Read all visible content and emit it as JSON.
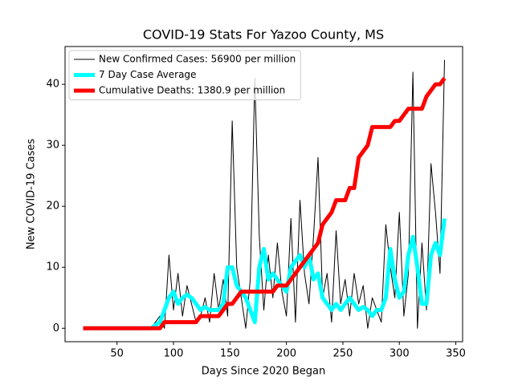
{
  "chart_data": {
    "type": "line",
    "title": "COVID-19 Stats For Yazoo County, MS",
    "x_label": "Days Since 2020 Began",
    "y_label": "New COVID-19 Cases",
    "x": [
      20,
      24,
      28,
      32,
      36,
      40,
      44,
      48,
      52,
      56,
      60,
      64,
      68,
      72,
      76,
      80,
      84,
      88,
      92,
      96,
      100,
      104,
      108,
      112,
      116,
      120,
      124,
      128,
      132,
      136,
      140,
      144,
      148,
      152,
      156,
      160,
      164,
      168,
      172,
      176,
      180,
      184,
      188,
      192,
      196,
      200,
      204,
      208,
      212,
      216,
      220,
      224,
      228,
      232,
      236,
      240,
      244,
      248,
      252,
      256,
      260,
      264,
      268,
      272,
      276,
      280,
      284,
      288,
      292,
      296,
      300,
      304,
      308,
      312,
      316,
      320,
      324,
      328,
      332,
      336,
      340
    ],
    "series": [
      {
        "name": "New Confirmed Cases: 56900 per million",
        "color": "#000000",
        "width": 1,
        "values": [
          0,
          0,
          0,
          0,
          0,
          0,
          0,
          0,
          0,
          0,
          0,
          0,
          0,
          0,
          0,
          0,
          1,
          2,
          0,
          12,
          3,
          9,
          2,
          7,
          4,
          1,
          2,
          5,
          1,
          9,
          3,
          8,
          2,
          34,
          10,
          5,
          0,
          8,
          41,
          15,
          3,
          12,
          5,
          14,
          6,
          2,
          18,
          1,
          21,
          9,
          4,
          15,
          28,
          5,
          9,
          1,
          16,
          4,
          8,
          2,
          9,
          4,
          7,
          0,
          5,
          3,
          1,
          17,
          10,
          5,
          19,
          2,
          9,
          42,
          0,
          14,
          3,
          27,
          19,
          9,
          44
        ]
      },
      {
        "name": "7 Day Case Average",
        "color": "#00ffff",
        "width": 5,
        "values": [
          0,
          0,
          0,
          0,
          0,
          0,
          0,
          0,
          0,
          0,
          0,
          0,
          0,
          0,
          0,
          0,
          0.5,
          1,
          3,
          5,
          6,
          4,
          5,
          5.5,
          5,
          4,
          3,
          3.5,
          3,
          3,
          3,
          4,
          10,
          10,
          7,
          6,
          5,
          3,
          1,
          10,
          13,
          8,
          9,
          8,
          7,
          6,
          10,
          11,
          12,
          10,
          12,
          8,
          9,
          5,
          4,
          3,
          4,
          3,
          4,
          5,
          4,
          3,
          3.5,
          3,
          2,
          3,
          3,
          5,
          13,
          8,
          5,
          6,
          12,
          15,
          10,
          4,
          4,
          12,
          14,
          12,
          18
        ]
      },
      {
        "name": "Cumulative Deaths: 1380.9 per million",
        "color": "#ff0000",
        "width": 5,
        "values": [
          0,
          0,
          0,
          0,
          0,
          0,
          0,
          0,
          0,
          0,
          0,
          0,
          0,
          0,
          0,
          0,
          0,
          0,
          1,
          1,
          1,
          1,
          1,
          1,
          1,
          1,
          2,
          2,
          2,
          2,
          2,
          3,
          4,
          4,
          5,
          6,
          6,
          6,
          6,
          6,
          6,
          6,
          6,
          7,
          7,
          7,
          8,
          9,
          10,
          11,
          12,
          13,
          14,
          17,
          18,
          19,
          21,
          21,
          21,
          23,
          23,
          28,
          29,
          30,
          33,
          33,
          33,
          33,
          33,
          34,
          34,
          35,
          36,
          36,
          36,
          36,
          38,
          39,
          40,
          40,
          41
        ]
      }
    ],
    "xlim": [
      4,
      356
    ],
    "xticks": [
      50,
      100,
      150,
      200,
      250,
      300,
      350
    ],
    "ylim": [
      -2.2,
      46.2
    ],
    "yticks": [
      0,
      10,
      20,
      30,
      40
    ],
    "legend": "upper left"
  }
}
